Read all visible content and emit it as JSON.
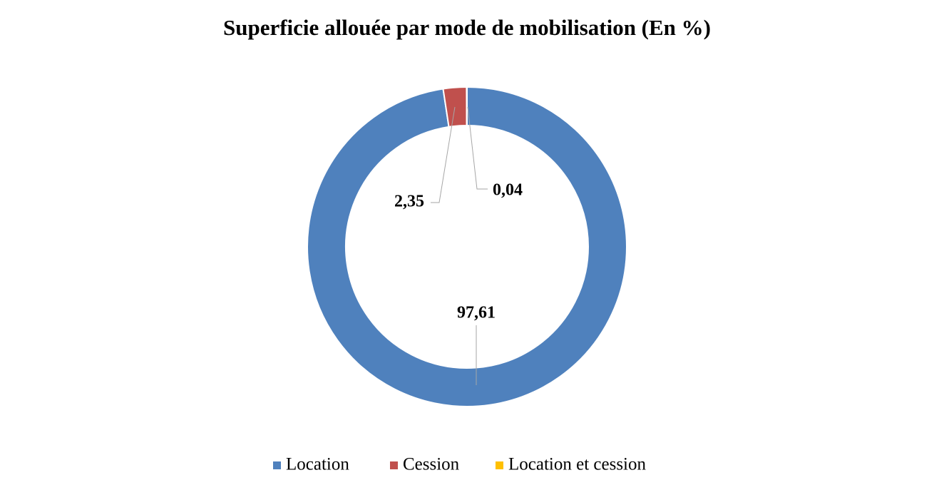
{
  "chart_data": {
    "type": "pie",
    "title": "Superficie allouée par mode de mobilisation (En %)",
    "categories": [
      "Location",
      "Cession",
      "Location et cession"
    ],
    "values": [
      97.61,
      2.35,
      0.04
    ],
    "value_labels": [
      "97,61",
      "2,35",
      "0,04"
    ],
    "colors": [
      "#4f81bd",
      "#c0504d",
      "#ffc000"
    ]
  }
}
